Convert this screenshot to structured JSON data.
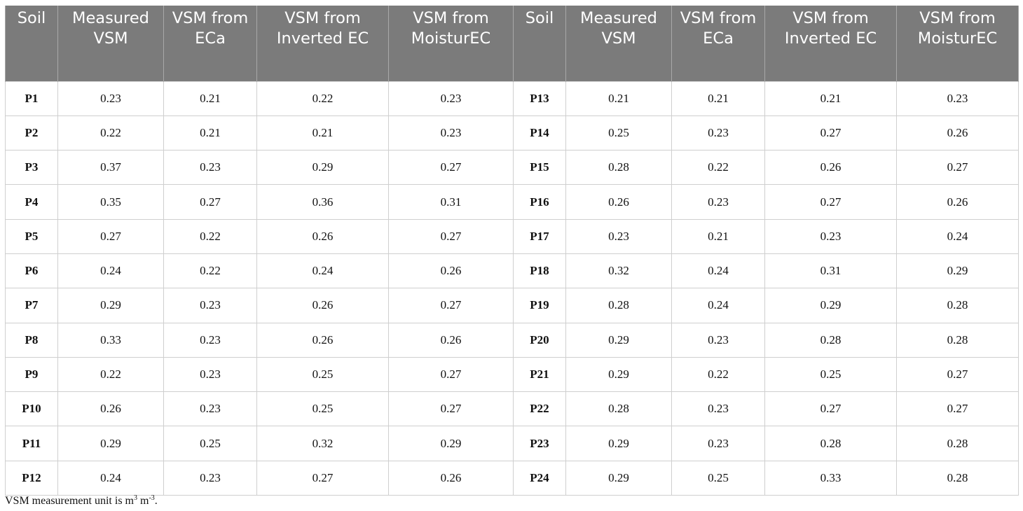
{
  "table": {
    "headers": [
      "Soil",
      "Measured VSM",
      "VSM from ECa",
      "VSM from Inverted EC",
      "VSM from MoisturEC",
      "Soil",
      "Measured VSM",
      "VSM from ECa",
      "VSM from Inverted EC",
      "VSM from MoisturEC"
    ],
    "rows": [
      [
        "P1",
        "0.23",
        "0.21",
        "0.22",
        "0.23",
        "P13",
        "0.21",
        "0.21",
        "0.21",
        "0.23"
      ],
      [
        "P2",
        "0.22",
        "0.21",
        "0.21",
        "0.23",
        "P14",
        "0.25",
        "0.23",
        "0.27",
        "0.26"
      ],
      [
        "P3",
        "0.37",
        "0.23",
        "0.29",
        "0.27",
        "P15",
        "0.28",
        "0.22",
        "0.26",
        "0.27"
      ],
      [
        "P4",
        "0.35",
        "0.27",
        "0.36",
        "0.31",
        "P16",
        "0.26",
        "0.23",
        "0.27",
        "0.26"
      ],
      [
        "P5",
        "0.27",
        "0.22",
        "0.26",
        "0.27",
        "P17",
        "0.23",
        "0.21",
        "0.23",
        "0.24"
      ],
      [
        "P6",
        "0.24",
        "0.22",
        "0.24",
        "0.26",
        "P18",
        "0.32",
        "0.24",
        "0.31",
        "0.29"
      ],
      [
        "P7",
        "0.29",
        "0.23",
        "0.26",
        "0.27",
        "P19",
        "0.28",
        "0.24",
        "0.29",
        "0.28"
      ],
      [
        "P8",
        "0.33",
        "0.23",
        "0.26",
        "0.26",
        "P20",
        "0.29",
        "0.23",
        "0.28",
        "0.28"
      ],
      [
        "P9",
        "0.22",
        "0.23",
        "0.25",
        "0.27",
        "P21",
        "0.29",
        "0.22",
        "0.25",
        "0.27"
      ],
      [
        "P10",
        "0.26",
        "0.23",
        "0.25",
        "0.27",
        "P22",
        "0.28",
        "0.23",
        "0.27",
        "0.27"
      ],
      [
        "P11",
        "0.29",
        "0.25",
        "0.32",
        "0.29",
        "P23",
        "0.29",
        "0.23",
        "0.28",
        "0.28"
      ],
      [
        "P12",
        "0.24",
        "0.23",
        "0.27",
        "0.26",
        "P24",
        "0.29",
        "0.25",
        "0.33",
        "0.28"
      ]
    ]
  },
  "footnote": {
    "prefix": "VSM measurement unit is m",
    "sup1": "3",
    "middle": " m",
    "sup2": "-3",
    "suffix": "."
  }
}
